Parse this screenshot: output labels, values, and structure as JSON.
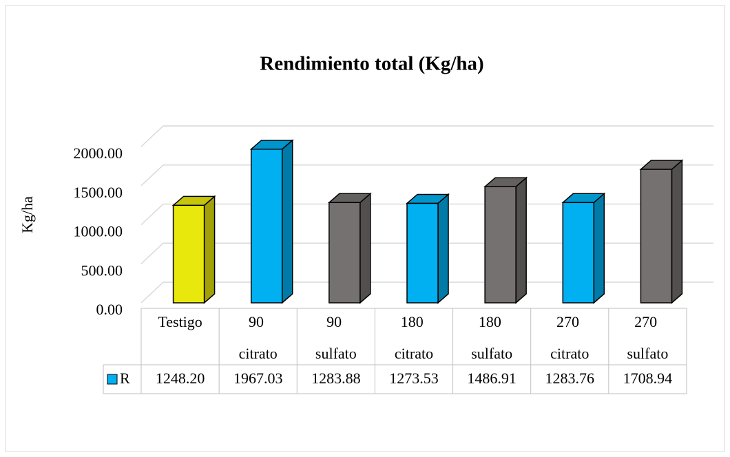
{
  "chart_data": {
    "type": "bar3d",
    "title": "Rendimiento total (Kg/ha)",
    "y_label": "Kg/ha",
    "categories": [
      "Testigo",
      "90 citrato",
      "90 sulfato",
      "180 citrato",
      "180 sulfato",
      "270 citrato",
      "270 sulfato"
    ],
    "series": [
      {
        "name": "R",
        "color": "#00b0f0",
        "colors": [
          "#e8e80c",
          "#00b0f0",
          "#767171",
          "#00b0f0",
          "#767171",
          "#00b0f0",
          "#767171"
        ],
        "values": [
          1248.2,
          1967.03,
          1283.88,
          1273.53,
          1486.91,
          1283.76,
          1708.94
        ],
        "value_labels": [
          "1248.20",
          "1967.03",
          "1283.88",
          "1273.53",
          "1486.91",
          "1283.76",
          "1708.94"
        ]
      }
    ],
    "ylim": [
      0,
      2000
    ],
    "yticks": [
      {
        "value": 0,
        "label": "0.00"
      },
      {
        "value": 500,
        "label": "500.00"
      },
      {
        "value": 1000,
        "label": "1000.00"
      },
      {
        "value": 1500,
        "label": "1500.00"
      },
      {
        "value": 2000,
        "label": "2000.00"
      }
    ],
    "grid": true,
    "data_table": true
  }
}
